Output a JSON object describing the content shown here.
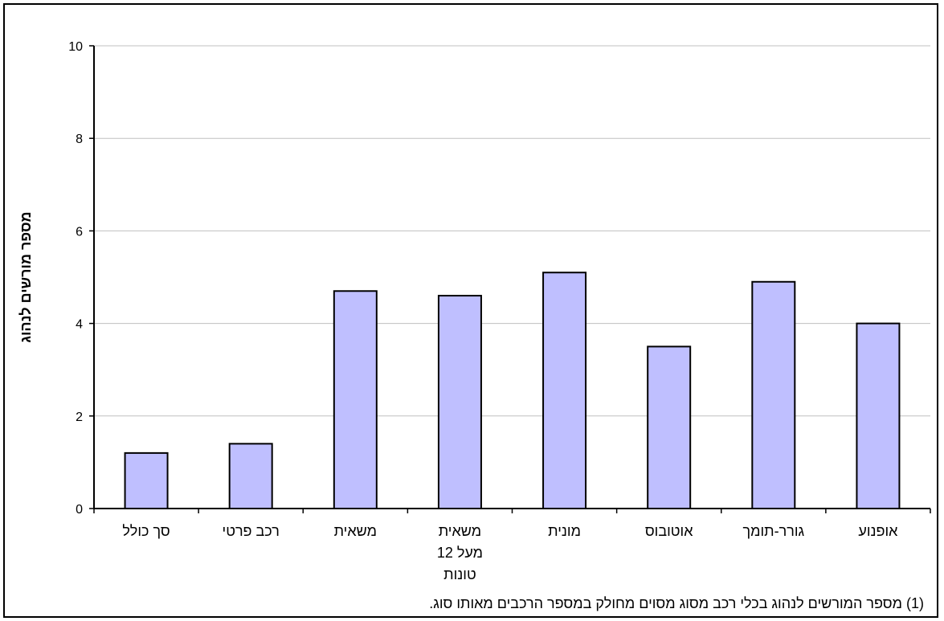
{
  "chart_data": {
    "type": "bar",
    "title": "",
    "xlabel": "",
    "ylabel": "מספר מורשים לנהוג",
    "ylim": [
      0,
      10
    ],
    "yticks": [
      "0",
      "2",
      "4",
      "6",
      "8",
      "10"
    ],
    "grid": true,
    "categories": [
      [
        "סך כולל"
      ],
      [
        "רכב פרטי"
      ],
      [
        "משאית"
      ],
      [
        "משאית",
        "מעל 12",
        "טונות"
      ],
      [
        "מונית"
      ],
      [
        "אוטובוס"
      ],
      [
        "גורר-תומך"
      ],
      [
        "אופנוע"
      ]
    ],
    "values": [
      1.2,
      1.4,
      4.7,
      4.6,
      5.1,
      3.5,
      4.9,
      4.0
    ],
    "bar_color": "#bfbfff",
    "bar_outline": "#000000",
    "grid_color": "#c0c0c0",
    "footnote": "(1) מספר המורשים לנהוג בכלי רכב מסוג מסוים מחולק במספר הרכבים מאותו סוג."
  }
}
